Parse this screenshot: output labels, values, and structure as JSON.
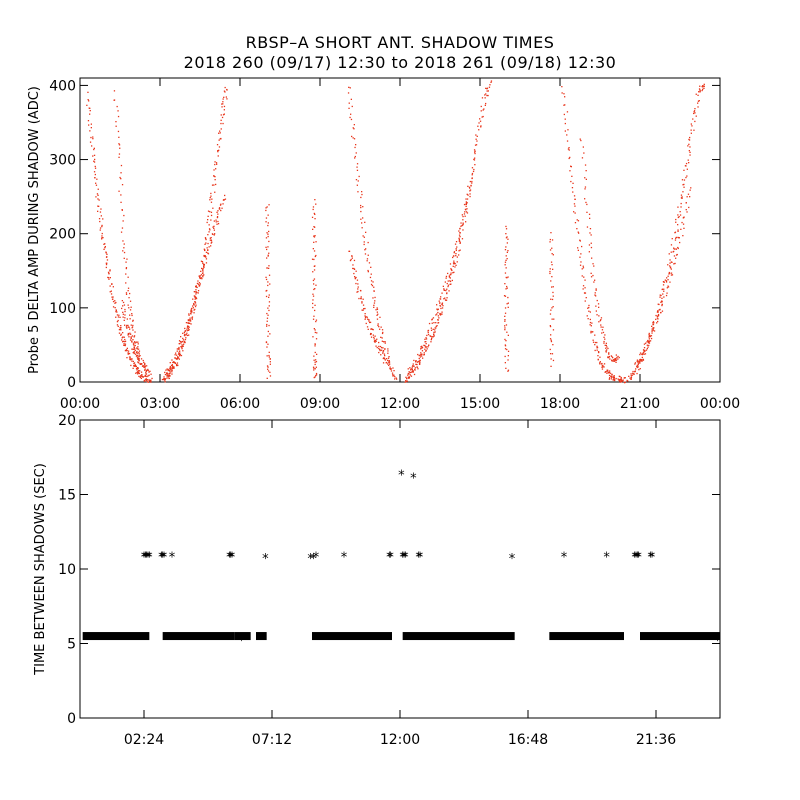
{
  "title_line1": "RBSP–A SHORT ANT. SHADOW TIMES",
  "title_line2": "2018 260 (09/17) 12:30 to 2018 261 (09/18) 12:30",
  "chart_data": [
    {
      "type": "scatter",
      "ylabel": "Probe 5 DELTA AMP DURING SHADOW (ADC)",
      "xlabel": "",
      "xlim": [
        0,
        24
      ],
      "ylim": [
        0,
        410
      ],
      "xticks": [
        0,
        3,
        6,
        9,
        12,
        15,
        18,
        21,
        24
      ],
      "xtick_labels": [
        "00:00",
        "03:00",
        "06:00",
        "09:00",
        "12:00",
        "15:00",
        "18:00",
        "21:00",
        "00:00"
      ],
      "yticks": [
        0,
        100,
        200,
        300,
        400
      ],
      "ytick_labels": [
        "0",
        "100",
        "200",
        "300",
        "400"
      ],
      "grid": false,
      "marker_color": "#e8351b",
      "series": [
        {
          "x": [
            0.25,
            0.4,
            0.55,
            0.7,
            0.85,
            1.0,
            1.15,
            1.3,
            1.45,
            1.6,
            1.75,
            1.9,
            2.05,
            2.2,
            2.35,
            2.5,
            2.65
          ],
          "y": [
            390,
            330,
            280,
            235,
            195,
            160,
            130,
            100,
            78,
            58,
            42,
            30,
            20,
            12,
            7,
            4,
            2
          ]
        },
        {
          "x": [
            1.3,
            1.45,
            1.6,
            1.75,
            1.9,
            2.05,
            2.2
          ],
          "y": [
            390,
            300,
            200,
            130,
            85,
            55,
            35
          ]
        },
        {
          "x": [
            1.55,
            1.7,
            1.85,
            2.0,
            2.15,
            2.3,
            2.45,
            2.6
          ],
          "y": [
            110,
            80,
            60,
            45,
            35,
            26,
            18,
            10
          ]
        },
        {
          "x": [
            3.1,
            3.25,
            3.4,
            3.55,
            3.7,
            3.85,
            4.0,
            4.15,
            4.3,
            4.45,
            4.6,
            4.75,
            4.9,
            5.05,
            5.2,
            5.35,
            5.5
          ],
          "y": [
            3,
            8,
            15,
            25,
            38,
            52,
            68,
            88,
            110,
            135,
            165,
            200,
            240,
            285,
            330,
            370,
            400
          ]
        },
        {
          "x": [
            3.2,
            3.4,
            3.6,
            3.8,
            4.0,
            4.2,
            4.4,
            4.6,
            4.8,
            5.0,
            5.2,
            5.4
          ],
          "y": [
            10,
            22,
            38,
            58,
            80,
            105,
            130,
            155,
            180,
            205,
            230,
            250
          ]
        },
        {
          "x": [
            7.0,
            7.0,
            7.02,
            7.03,
            7.04,
            7.05
          ],
          "y": [
            240,
            190,
            140,
            90,
            40,
            5
          ]
        },
        {
          "x": [
            8.75,
            8.76,
            8.77,
            8.78,
            8.79,
            8.8
          ],
          "y": [
            245,
            190,
            135,
            80,
            30,
            5
          ]
        },
        {
          "x": [
            10.05,
            10.25,
            10.45,
            10.65,
            10.85,
            11.05,
            11.25,
            11.45,
            11.65,
            11.85
          ],
          "y": [
            400,
            330,
            260,
            200,
            150,
            105,
            70,
            42,
            20,
            5
          ]
        },
        {
          "x": [
            10.1,
            10.3,
            10.5,
            10.7,
            10.9,
            11.1,
            11.3,
            11.5
          ],
          "y": [
            180,
            145,
            115,
            90,
            70,
            52,
            38,
            25
          ]
        },
        {
          "x": [
            12.15,
            12.35,
            12.55,
            12.75,
            12.95,
            13.15,
            13.35,
            13.55,
            13.75,
            13.95,
            14.15,
            14.35,
            14.55,
            14.75,
            14.95,
            15.15,
            15.35
          ],
          "y": [
            3,
            10,
            20,
            32,
            46,
            62,
            80,
            100,
            125,
            150,
            180,
            215,
            255,
            300,
            345,
            385,
            405
          ]
        },
        {
          "x": [
            12.3,
            12.6,
            12.9,
            13.2,
            13.5,
            13.8,
            14.1,
            14.4,
            14.7
          ],
          "y": [
            15,
            32,
            55,
            80,
            110,
            145,
            185,
            230,
            280
          ]
        },
        {
          "x": [
            15.95,
            15.96,
            15.97,
            15.98,
            15.99
          ],
          "y": [
            210,
            160,
            110,
            60,
            10
          ]
        },
        {
          "x": [
            17.65,
            17.66,
            17.67,
            17.68
          ],
          "y": [
            200,
            140,
            80,
            20
          ]
        },
        {
          "x": [
            18.1,
            18.3,
            18.5,
            18.7,
            18.9,
            19.1,
            19.3,
            19.5,
            19.7,
            19.9,
            20.1,
            20.3,
            20.5
          ],
          "y": [
            400,
            320,
            250,
            185,
            130,
            85,
            50,
            28,
            15,
            8,
            5,
            4,
            4
          ]
        },
        {
          "x": [
            18.8,
            19.0,
            19.2,
            19.4,
            19.6,
            19.8,
            20.0,
            20.2
          ],
          "y": [
            330,
            230,
            150,
            95,
            60,
            38,
            30,
            35
          ]
        },
        {
          "x": [
            20.6,
            20.8,
            21.0,
            21.2,
            21.4,
            21.6,
            21.8,
            22.0,
            22.2,
            22.4,
            22.6,
            22.8,
            23.0,
            23.2,
            23.4
          ],
          "y": [
            5,
            15,
            28,
            45,
            65,
            88,
            115,
            145,
            180,
            220,
            265,
            310,
            355,
            395,
            400
          ]
        },
        {
          "x": [
            20.8,
            21.1,
            21.4,
            21.7,
            22.0,
            22.3,
            22.6,
            22.9
          ],
          "y": [
            20,
            40,
            65,
            95,
            130,
            170,
            215,
            265
          ]
        }
      ]
    },
    {
      "type": "scatter",
      "ylabel": "TIME BETWEEN SHADOWS (SEC)",
      "xlabel": "",
      "xlim": [
        0,
        24
      ],
      "ylim": [
        0,
        20
      ],
      "xticks": [
        2.4,
        7.2,
        12.0,
        16.8,
        21.6
      ],
      "xtick_labels": [
        "02:24",
        "07:12",
        "12:00",
        "16:48",
        "21:36"
      ],
      "yticks": [
        0,
        5,
        10,
        15,
        20
      ],
      "ytick_labels": [
        "0",
        "5",
        "10",
        "15",
        "20"
      ],
      "grid": false,
      "marker": "*",
      "marker_color": "#000000",
      "baseline_value": 5.5,
      "baseline_segments": [
        [
          0.1,
          2.6
        ],
        [
          3.1,
          5.8
        ],
        [
          5.8,
          6.4
        ],
        [
          6.6,
          7.0
        ],
        [
          8.7,
          11.7
        ],
        [
          12.1,
          16.3
        ],
        [
          17.6,
          20.4
        ],
        [
          21.0,
          24.0
        ]
      ],
      "series": [
        {
          "name": "",
          "x": [
            2.4,
            2.45,
            2.5,
            2.55,
            2.6,
            3.05,
            3.1,
            3.15,
            3.45,
            5.6,
            5.65,
            5.7,
            6.95,
            8.65,
            8.75,
            8.85,
            9.9,
            11.6,
            11.65,
            12.1,
            12.15,
            12.2,
            12.7,
            12.75,
            16.2,
            18.15,
            19.75,
            20.8,
            20.85,
            20.9,
            20.95,
            21.4,
            21.45
          ],
          "y": [
            10.9,
            10.9,
            10.9,
            10.9,
            10.9,
            10.9,
            10.9,
            10.9,
            10.9,
            10.9,
            10.9,
            10.9,
            10.8,
            10.8,
            10.8,
            10.9,
            10.9,
            10.9,
            10.9,
            10.9,
            10.9,
            10.9,
            10.9,
            10.9,
            10.8,
            10.9,
            10.9,
            10.9,
            10.9,
            10.9,
            10.9,
            10.9,
            10.9
          ]
        },
        {
          "name": "",
          "x": [
            12.05,
            12.5
          ],
          "y": [
            16.4,
            16.2
          ]
        },
        {
          "name": "",
          "x": [
            6.05,
            23.9
          ],
          "y": [
            5.3,
            5.3
          ]
        }
      ]
    }
  ]
}
